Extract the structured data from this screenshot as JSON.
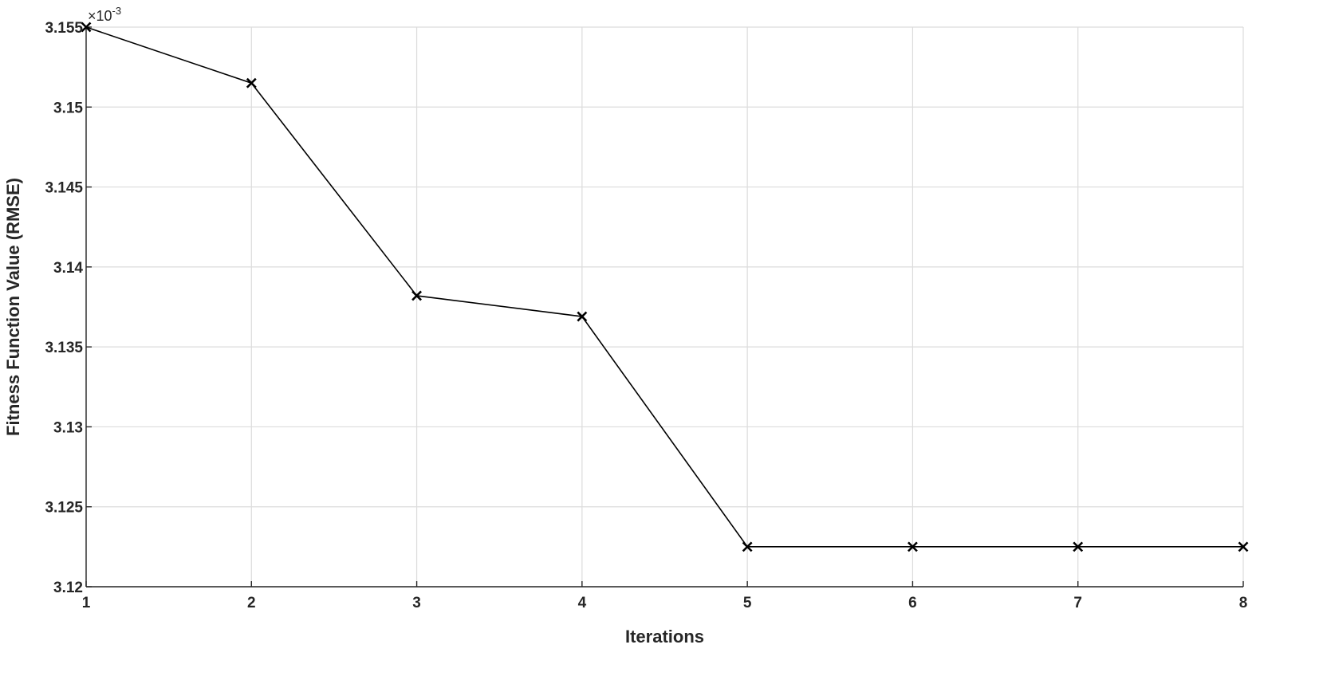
{
  "chart_data": {
    "type": "line",
    "title": "",
    "xlabel": "Iterations",
    "ylabel": "Fitness Function Value (RMSE)",
    "y_exponent_label": "×10",
    "y_exponent_power": "-3",
    "x": [
      1,
      2,
      3,
      4,
      5,
      6,
      7,
      8
    ],
    "values": [
      3.155,
      3.1515,
      3.1382,
      3.1369,
      3.1225,
      3.1225,
      3.1225,
      3.1225
    ],
    "xlim": [
      1,
      8
    ],
    "ylim": [
      3.12,
      3.155
    ],
    "x_ticks": [
      "1",
      "2",
      "3",
      "4",
      "5",
      "6",
      "7",
      "8"
    ],
    "y_ticks": [
      "3.12",
      "3.125",
      "3.13",
      "3.135",
      "3.14",
      "3.145",
      "3.15",
      "3.155"
    ],
    "grid": true,
    "marker": "x",
    "line_color": "#000000"
  }
}
